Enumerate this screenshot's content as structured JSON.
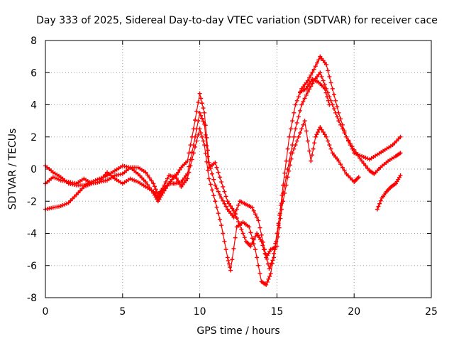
{
  "chart_data": {
    "type": "scatter",
    "title": "Day 333 of 2025, Sidereal Day-to-day VTEC variation (SDTVAR) for receiver cace",
    "xlabel": "GPS time / hours",
    "ylabel": "SDTVAR / TECUs",
    "xlim": [
      0,
      25
    ],
    "ylim": [
      -8,
      8
    ],
    "xticks": [
      0,
      5,
      10,
      15,
      20,
      25
    ],
    "yticks": [
      -8,
      -6,
      -4,
      -2,
      0,
      2,
      4,
      6,
      8
    ],
    "grid": true,
    "marker": "plus",
    "color": "#ff0000",
    "series": [
      {
        "points": [
          [
            0,
            -2.5
          ],
          [
            0.5,
            -2.4
          ],
          [
            1.0,
            -2.3
          ],
          [
            1.5,
            -2.1
          ],
          [
            2.0,
            -1.6
          ],
          [
            2.5,
            -1.1
          ],
          [
            3.0,
            -0.9
          ],
          [
            3.5,
            -0.8
          ],
          [
            4.0,
            -0.7
          ],
          [
            4.5,
            -0.4
          ],
          [
            5.0,
            -0.3
          ],
          [
            5.5,
            0.1
          ],
          [
            6.0,
            0.1
          ],
          [
            6.5,
            -0.2
          ],
          [
            7.0,
            -0.9
          ],
          [
            7.3,
            -1.6
          ],
          [
            7.6,
            -1.2
          ],
          [
            8.0,
            -0.4
          ],
          [
            8.4,
            -0.5
          ],
          [
            8.8,
            0.1
          ],
          [
            9.2,
            0.5
          ],
          [
            9.6,
            2.5
          ],
          [
            10.0,
            4.7
          ],
          [
            10.3,
            3.5
          ],
          [
            10.6,
            0.4
          ],
          [
            11.0,
            -1.0
          ],
          [
            11.4,
            -1.8
          ],
          [
            11.8,
            -2.5
          ],
          [
            12.2,
            -3.0
          ],
          [
            12.6,
            -2.0
          ],
          [
            13.0,
            -2.2
          ],
          [
            13.4,
            -2.4
          ],
          [
            13.8,
            -3.2
          ],
          [
            14.2,
            -5.0
          ],
          [
            14.5,
            -6.2
          ],
          [
            14.8,
            -5.5
          ],
          [
            15.1,
            -3.5
          ],
          [
            15.4,
            -1.0
          ],
          [
            15.8,
            2.0
          ],
          [
            16.2,
            4.0
          ],
          [
            16.6,
            5.0
          ],
          [
            17.0,
            5.5
          ],
          [
            17.4,
            6.2
          ],
          [
            17.8,
            7.0
          ],
          [
            18.2,
            6.5
          ],
          [
            18.6,
            5.0
          ],
          [
            19.0,
            3.5
          ],
          [
            19.5,
            2.0
          ],
          [
            20.0,
            1.0
          ],
          [
            20.5,
            0.8
          ],
          [
            21.0,
            0.6
          ],
          [
            21.5,
            0.9
          ],
          [
            22.0,
            1.2
          ],
          [
            22.5,
            1.5
          ],
          [
            23.0,
            2.0
          ]
        ]
      },
      {
        "points": [
          [
            0,
            0.2
          ],
          [
            0.5,
            -0.2
          ],
          [
            1.0,
            -0.5
          ],
          [
            1.5,
            -0.9
          ],
          [
            2.0,
            -1.0
          ],
          [
            2.5,
            -1.0
          ],
          [
            3.0,
            -0.8
          ],
          [
            3.5,
            -0.6
          ],
          [
            4.0,
            -0.4
          ],
          [
            4.5,
            -0.1
          ],
          [
            5.0,
            0.2
          ],
          [
            5.5,
            0.1
          ],
          [
            6.0,
            -0.3
          ],
          [
            6.5,
            -0.8
          ],
          [
            7.0,
            -1.5
          ],
          [
            7.3,
            -2.0
          ],
          [
            7.6,
            -1.5
          ],
          [
            8.0,
            -0.9
          ],
          [
            8.4,
            -0.4
          ],
          [
            8.8,
            -1.1
          ],
          [
            9.2,
            -0.6
          ],
          [
            9.6,
            1.0
          ],
          [
            10.0,
            2.5
          ],
          [
            10.3,
            1.5
          ],
          [
            10.6,
            -0.6
          ],
          [
            11.0,
            -2.0
          ],
          [
            11.4,
            -3.5
          ],
          [
            11.8,
            -5.5
          ],
          [
            12.0,
            -6.3
          ],
          [
            12.4,
            -3.6
          ],
          [
            12.8,
            -3.3
          ],
          [
            13.2,
            -3.6
          ],
          [
            13.6,
            -5.0
          ],
          [
            14.0,
            -7.0
          ],
          [
            14.3,
            -7.2
          ],
          [
            14.6,
            -6.5
          ],
          [
            15.0,
            -4.0
          ],
          [
            15.4,
            -1.5
          ],
          [
            15.8,
            0.5
          ],
          [
            16.2,
            2.5
          ],
          [
            16.6,
            4.0
          ],
          [
            17.0,
            4.8
          ],
          [
            17.4,
            5.5
          ],
          [
            17.8,
            6.0
          ],
          [
            18.2,
            5.0
          ],
          [
            18.6,
            4.0
          ],
          [
            19.0,
            3.0
          ],
          [
            19.5,
            2.0
          ],
          [
            20.0,
            1.2
          ],
          [
            20.5,
            0.5
          ],
          [
            21.0,
            -0.1
          ],
          [
            21.3,
            -0.3
          ],
          [
            21.7,
            0.1
          ],
          [
            22.2,
            0.5
          ],
          [
            22.7,
            0.8
          ],
          [
            23.0,
            1.0
          ]
        ]
      },
      {
        "points": [
          [
            0,
            -0.9
          ],
          [
            0.5,
            -0.5
          ],
          [
            1.0,
            -0.7
          ],
          [
            1.5,
            -0.8
          ],
          [
            2.0,
            -0.9
          ],
          [
            2.5,
            -0.6
          ],
          [
            3.0,
            -0.9
          ],
          [
            3.5,
            -0.8
          ],
          [
            4.0,
            -0.2
          ],
          [
            4.5,
            -0.6
          ],
          [
            5.0,
            -0.9
          ],
          [
            5.5,
            -0.6
          ],
          [
            6.0,
            -0.8
          ],
          [
            6.5,
            -1.1
          ],
          [
            7.0,
            -1.4
          ],
          [
            7.3,
            -1.8
          ],
          [
            7.6,
            -1.3
          ],
          [
            8.0,
            -0.9
          ],
          [
            8.4,
            -0.9
          ],
          [
            8.8,
            -0.8
          ],
          [
            9.2,
            -0.3
          ],
          [
            9.6,
            1.5
          ],
          [
            10.0,
            3.5
          ],
          [
            10.3,
            2.8
          ],
          [
            10.6,
            0.1
          ],
          [
            11.0,
            0.4
          ],
          [
            11.4,
            -0.8
          ],
          [
            11.8,
            -2.0
          ],
          [
            12.2,
            -2.6
          ],
          [
            12.6,
            -3.5
          ],
          [
            13.0,
            -4.5
          ],
          [
            13.3,
            -4.8
          ],
          [
            13.7,
            -4.0
          ],
          [
            14.0,
            -4.5
          ],
          [
            14.3,
            -5.5
          ],
          [
            14.6,
            -5.0
          ],
          [
            15.0,
            -4.8
          ],
          [
            15.3,
            -2.5
          ],
          [
            15.7,
            -0.5
          ],
          [
            16.0,
            1.0
          ],
          [
            16.4,
            2.0
          ],
          [
            16.8,
            3.0
          ],
          [
            17.2,
            0.5
          ],
          [
            17.5,
            2.0
          ],
          [
            17.8,
            2.6
          ],
          [
            18.2,
            2.0
          ],
          [
            18.6,
            1.0
          ],
          [
            19.0,
            0.5
          ],
          [
            19.5,
            -0.3
          ],
          [
            20.0,
            -0.8
          ],
          [
            20.3,
            -0.5
          ]
        ]
      },
      {
        "points": [
          [
            21.5,
            -2.5
          ],
          [
            21.8,
            -1.8
          ],
          [
            22.1,
            -1.4
          ],
          [
            22.4,
            -1.1
          ],
          [
            22.7,
            -0.9
          ],
          [
            23.0,
            -0.4
          ]
        ]
      },
      {
        "points": [
          [
            16.5,
            4.8
          ],
          [
            16.9,
            5.0
          ],
          [
            17.3,
            5.6
          ],
          [
            17.7,
            5.4
          ],
          [
            18.1,
            5.0
          ],
          [
            18.4,
            4.0
          ]
        ]
      }
    ]
  }
}
